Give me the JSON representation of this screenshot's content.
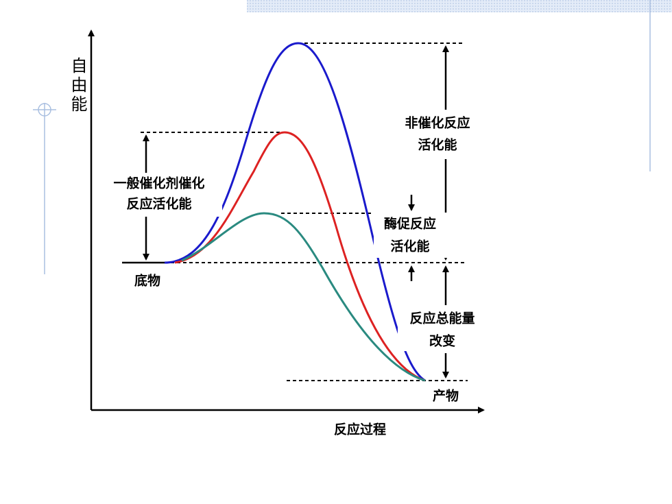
{
  "axis": {
    "y_label": "自由能",
    "x_label": "反应过程"
  },
  "labels": {
    "uncatalyzed": [
      "非催化反应",
      "活化能"
    ],
    "catalyst": [
      "一般催化剂催化",
      "反应活化能"
    ],
    "enzyme": [
      "酶促反应",
      "活化能"
    ],
    "substrate": "底物",
    "total": [
      "反应总能量",
      "改变"
    ],
    "product": "产物"
  }
}
